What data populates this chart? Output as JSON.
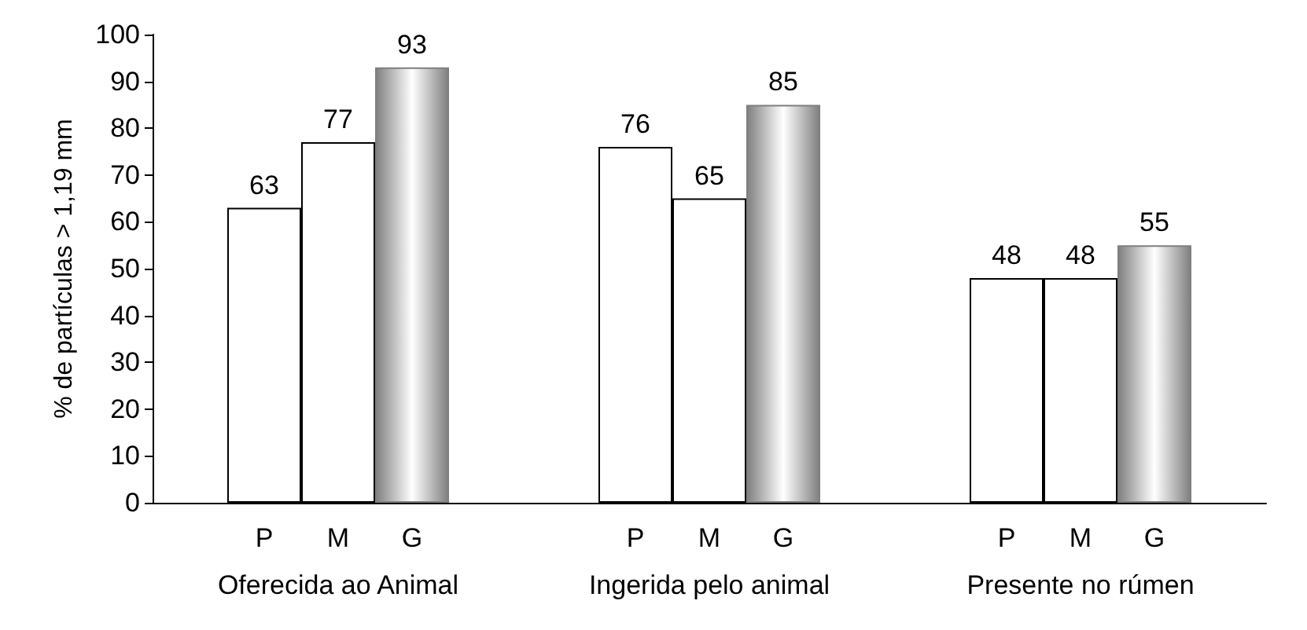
{
  "chart_data": {
    "type": "bar",
    "ylabel": "% de partículas > 1,19 mm",
    "categories": [
      "Oferecida ao Animal",
      "Ingerida pelo animal",
      "Presente no rúmen"
    ],
    "series": [
      {
        "name": "P",
        "color": "#ffffff",
        "values": [
          63,
          76,
          48
        ]
      },
      {
        "name": "M",
        "color": "#ffffff",
        "values": [
          77,
          65,
          48
        ]
      },
      {
        "name": "G",
        "color": "#7f7f7f",
        "values": [
          93,
          85,
          55
        ]
      }
    ],
    "ylim": [
      0,
      100
    ],
    "yticks": [
      0,
      10,
      20,
      30,
      40,
      50,
      60,
      70,
      80,
      90,
      100
    ],
    "grid": false,
    "legend": false,
    "data_labels": true
  }
}
